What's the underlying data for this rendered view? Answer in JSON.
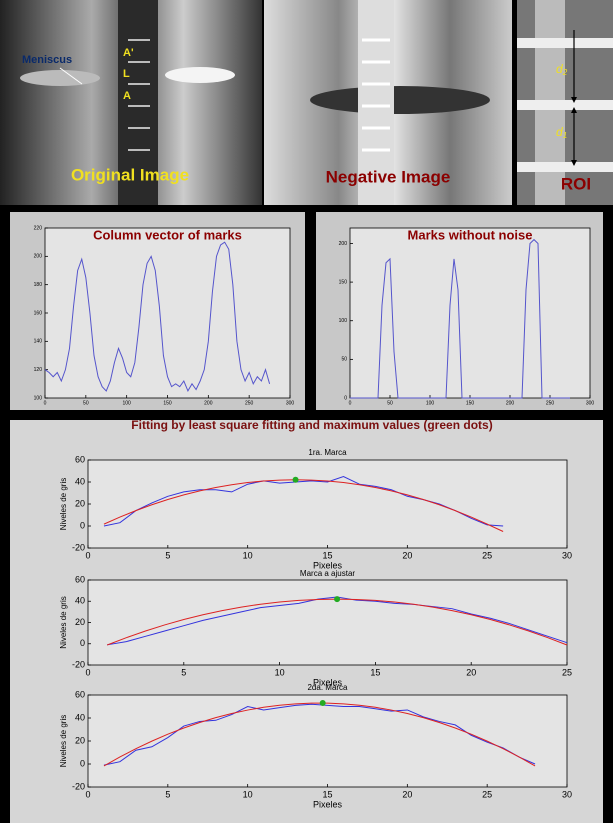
{
  "images": {
    "original": {
      "title": "Original Image",
      "meniscus": "Meniscus",
      "marks": [
        "A'",
        "L",
        "A"
      ]
    },
    "negative": {
      "title": "Negative Image"
    },
    "roi": {
      "title": "ROI",
      "distances": [
        {
          "symbol": "d",
          "subscript": "2"
        },
        {
          "symbol": "d",
          "subscript": "1"
        }
      ]
    }
  },
  "fitting_title": "Fitting by least square fitting and maximum values (green dots)",
  "chart_data": [
    {
      "type": "line",
      "title": "Column vector of marks",
      "x": [
        0,
        5,
        10,
        15,
        20,
        25,
        30,
        35,
        40,
        45,
        50,
        55,
        60,
        65,
        70,
        75,
        80,
        85,
        90,
        95,
        100,
        105,
        110,
        115,
        120,
        125,
        130,
        135,
        140,
        145,
        150,
        155,
        160,
        165,
        170,
        175,
        180,
        185,
        190,
        195,
        200,
        205,
        210,
        215,
        220,
        225,
        230,
        235,
        240,
        245,
        250,
        255,
        260,
        265,
        270,
        275
      ],
      "series": [
        {
          "color": "#5555cc",
          "values": [
            120,
            118,
            115,
            118,
            112,
            120,
            135,
            165,
            190,
            198,
            185,
            160,
            130,
            115,
            108,
            105,
            112,
            125,
            135,
            128,
            118,
            115,
            125,
            150,
            180,
            195,
            200,
            190,
            165,
            130,
            115,
            108,
            110,
            108,
            112,
            105,
            110,
            106,
            112,
            120,
            140,
            175,
            200,
            208,
            210,
            205,
            180,
            140,
            120,
            112,
            118,
            110,
            115,
            112,
            120,
            110
          ]
        }
      ],
      "xlim": [
        0,
        300
      ],
      "ylim": [
        100,
        220
      ],
      "xticks": [
        0,
        50,
        100,
        150,
        200,
        250,
        300
      ],
      "yticks": [
        100,
        120,
        140,
        160,
        180,
        200,
        220
      ]
    },
    {
      "type": "line",
      "title": "Marks without noise",
      "x": [
        0,
        5,
        10,
        15,
        20,
        25,
        30,
        35,
        40,
        45,
        50,
        55,
        60,
        65,
        70,
        75,
        80,
        85,
        90,
        95,
        100,
        105,
        110,
        115,
        120,
        125,
        130,
        135,
        140,
        145,
        150,
        155,
        160,
        165,
        170,
        175,
        180,
        185,
        190,
        195,
        200,
        205,
        210,
        215,
        220,
        225,
        230,
        235,
        240,
        245,
        250,
        255,
        260,
        265,
        270,
        275
      ],
      "series": [
        {
          "color": "#5555cc",
          "values": [
            0,
            0,
            0,
            0,
            0,
            0,
            0,
            0,
            120,
            175,
            180,
            60,
            0,
            0,
            0,
            0,
            0,
            0,
            0,
            0,
            0,
            0,
            0,
            0,
            0,
            120,
            180,
            140,
            0,
            0,
            0,
            0,
            0,
            0,
            0,
            0,
            0,
            0,
            0,
            0,
            0,
            0,
            0,
            0,
            140,
            200,
            205,
            200,
            0,
            0,
            0,
            0,
            0,
            0,
            0,
            0
          ]
        }
      ],
      "xlim": [
        0,
        300
      ],
      "ylim": [
        0,
        220
      ],
      "xticks": [
        0,
        50,
        100,
        150,
        200,
        250,
        300
      ],
      "yticks": [
        0,
        50,
        100,
        150,
        200
      ]
    },
    {
      "type": "line",
      "title": "1ra. Marca",
      "xlabel": "Pixeles",
      "ylabel": "Niveles de gris",
      "x": [
        1,
        2,
        3,
        4,
        5,
        6,
        7,
        8,
        9,
        10,
        11,
        12,
        13,
        14,
        15,
        16,
        17,
        18,
        19,
        20,
        21,
        22,
        23,
        24,
        25,
        26
      ],
      "series": [
        {
          "color": "#3333dd",
          "values": [
            0,
            3,
            14,
            21,
            27,
            31,
            33,
            33,
            31,
            38,
            41,
            39,
            40,
            41,
            40,
            45,
            38,
            36,
            33,
            27,
            24,
            20,
            14,
            7,
            1,
            0
          ]
        },
        {
          "color": "#dd2222",
          "values": [
            1.7,
            8.1,
            14,
            19.3,
            24.1,
            28.3,
            31.9,
            35,
            37.5,
            39.5,
            40.9,
            41.7,
            42,
            41.7,
            40.9,
            39.5,
            37.5,
            35,
            31.9,
            28.3,
            24.1,
            19.3,
            14,
            8.1,
            1.7,
            -5
          ]
        }
      ],
      "marker": {
        "x": 13,
        "y": 42,
        "color": "#22aa22"
      },
      "xlim": [
        0,
        30
      ],
      "ylim": [
        -20,
        60
      ],
      "xticks": [
        0,
        5,
        10,
        15,
        20,
        25,
        30
      ],
      "yticks": [
        -20,
        0,
        20,
        40,
        60
      ]
    },
    {
      "type": "line",
      "title": "Marca a ajustar",
      "xlabel": "Pixeles",
      "ylabel": "Niveles de gris",
      "x": [
        1,
        2,
        3,
        4,
        5,
        6,
        7,
        8,
        9,
        10,
        11,
        12,
        13,
        14,
        15,
        16,
        17,
        18,
        19,
        20,
        21,
        22,
        23,
        24,
        25
      ],
      "series": [
        {
          "color": "#3333dd",
          "values": [
            -1,
            2,
            7,
            12,
            17,
            22,
            26,
            30,
            34,
            36,
            38,
            42,
            44,
            41,
            40,
            38,
            37,
            35,
            33,
            28,
            24,
            19,
            13,
            7,
            1
          ]
        },
        {
          "color": "#dd2222",
          "values": [
            -1.2,
            5.7,
            12,
            17.7,
            22.8,
            27.3,
            31.2,
            34.5,
            37.2,
            39.3,
            40.8,
            41.7,
            42,
            41.7,
            40.8,
            39.3,
            37.2,
            34.5,
            31.2,
            27.3,
            22.8,
            17.7,
            12,
            5.7,
            -1.2
          ]
        }
      ],
      "marker": {
        "x": 13,
        "y": 42,
        "color": "#22aa22"
      },
      "xlim": [
        0,
        25
      ],
      "ylim": [
        -20,
        60
      ],
      "xticks": [
        0,
        5,
        10,
        15,
        20,
        25
      ],
      "yticks": [
        -20,
        0,
        20,
        40,
        60
      ]
    },
    {
      "type": "line",
      "title": "2da. Marca",
      "xlabel": "Pixeles",
      "ylabel": "Niveles de gris",
      "x": [
        1,
        2,
        3,
        4,
        5,
        6,
        7,
        8,
        9,
        10,
        11,
        12,
        13,
        14,
        15,
        16,
        17,
        18,
        19,
        20,
        21,
        22,
        23,
        24,
        25,
        26,
        27,
        28
      ],
      "series": [
        {
          "color": "#3333dd",
          "values": [
            -1,
            2,
            12,
            15,
            23,
            33,
            37,
            38,
            43,
            50,
            47,
            49,
            51,
            52,
            51,
            50,
            50,
            48,
            46,
            47,
            41,
            37,
            34,
            25,
            19,
            14,
            6,
            0
          ]
        },
        {
          "color": "#dd2222",
          "values": [
            -1.7,
            6.1,
            13.3,
            19.9,
            25.9,
            31.3,
            36.1,
            40.3,
            43.9,
            46.9,
            49.3,
            51.1,
            52.3,
            52.9,
            52.9,
            52.3,
            51.1,
            49.3,
            46.9,
            43.9,
            40.3,
            36.1,
            31.3,
            25.9,
            19.9,
            13.3,
            6.1,
            -1.7
          ]
        }
      ],
      "marker": {
        "x": 14.7,
        "y": 53,
        "color": "#22aa22"
      },
      "xlim": [
        0,
        30
      ],
      "ylim": [
        -20,
        60
      ],
      "xticks": [
        0,
        5,
        10,
        15,
        20,
        25,
        30
      ],
      "yticks": [
        -20,
        0,
        20,
        40,
        60
      ]
    }
  ]
}
